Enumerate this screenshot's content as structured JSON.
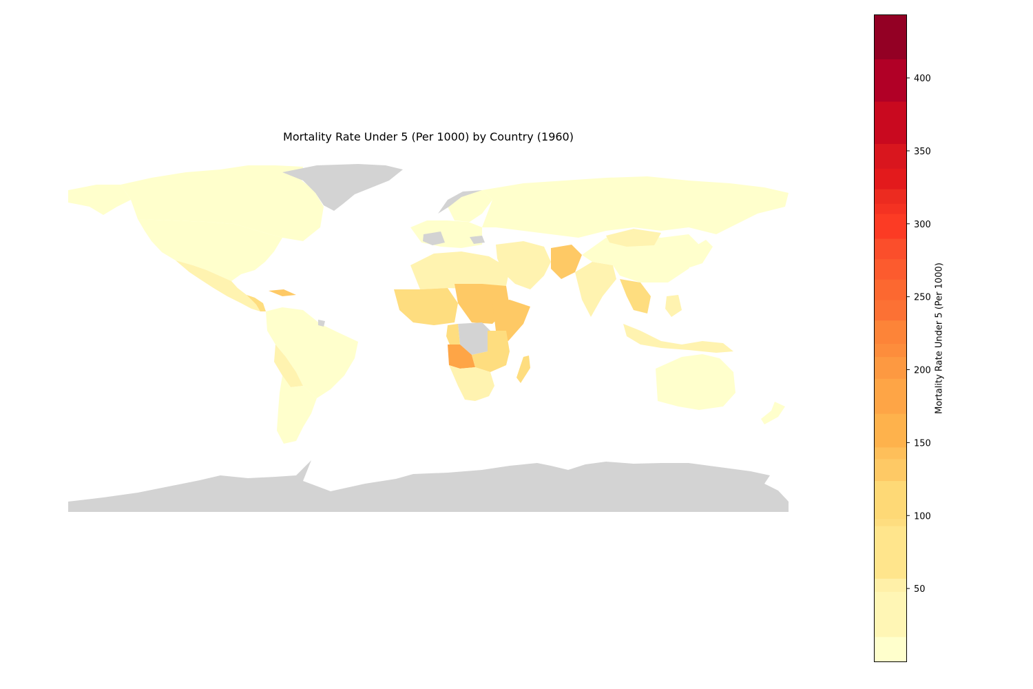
{
  "title": "Mortality Rate Under 5 (Per 1000) by Country (1960)",
  "colorbar": {
    "label": "Mortality Rate Under 5 (Per 1000)",
    "min": 0,
    "max": 443,
    "ticks": [
      50,
      100,
      150,
      200,
      250,
      300,
      350,
      400
    ],
    "bands": [
      {
        "from": 0,
        "to": 17,
        "color": "#ffffcc"
      },
      {
        "from": 17,
        "to": 48,
        "color": "#fff6b5"
      },
      {
        "from": 48,
        "to": 57,
        "color": "#fff0a8"
      },
      {
        "from": 57,
        "to": 93,
        "color": "#ffe58c"
      },
      {
        "from": 93,
        "to": 98,
        "color": "#fedd7f"
      },
      {
        "from": 98,
        "to": 124,
        "color": "#fed976"
      },
      {
        "from": 124,
        "to": 139,
        "color": "#fec965"
      },
      {
        "from": 139,
        "to": 147,
        "color": "#febf5a"
      },
      {
        "from": 147,
        "to": 170,
        "color": "#feb24c"
      },
      {
        "from": 170,
        "to": 194,
        "color": "#fea546"
      },
      {
        "from": 194,
        "to": 209,
        "color": "#fd9941"
      },
      {
        "from": 209,
        "to": 218,
        "color": "#fd8d3c"
      },
      {
        "from": 218,
        "to": 234,
        "color": "#fd8438"
      },
      {
        "from": 234,
        "to": 248,
        "color": "#fc7134"
      },
      {
        "from": 248,
        "to": 262,
        "color": "#fc6830"
      },
      {
        "from": 262,
        "to": 276,
        "color": "#fc5b2e"
      },
      {
        "from": 276,
        "to": 290,
        "color": "#fb4e2b"
      },
      {
        "from": 290,
        "to": 307,
        "color": "#fc3b24"
      },
      {
        "from": 307,
        "to": 314,
        "color": "#f43222"
      },
      {
        "from": 314,
        "to": 324,
        "color": "#ec2b20"
      },
      {
        "from": 324,
        "to": 338,
        "color": "#e31a1c"
      },
      {
        "from": 338,
        "to": 355,
        "color": "#d9161e"
      },
      {
        "from": 355,
        "to": 384,
        "color": "#c9091f"
      },
      {
        "from": 384,
        "to": 413,
        "color": "#b10026"
      },
      {
        "from": 413,
        "to": 443,
        "color": "#930024"
      }
    ]
  },
  "colors": {
    "no_data": "#d3d3d3",
    "low": "#ffffcc",
    "mid_low": "#fff3b0",
    "mid": "#fedd7f",
    "mid_high": "#fec965",
    "high": "#feb24c",
    "very_high": "#fea546"
  }
}
